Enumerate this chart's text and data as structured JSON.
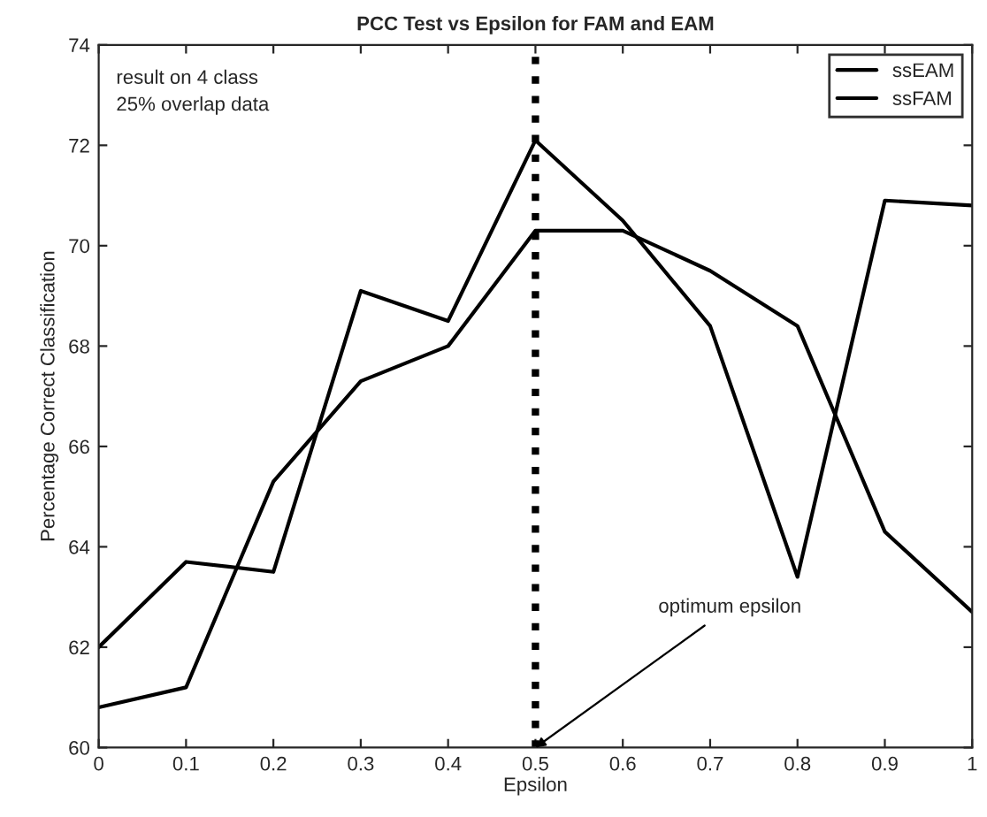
{
  "chart_data": {
    "type": "line",
    "title": "PCC Test vs Epsilon for FAM and EAM",
    "xlabel": "Epsilon",
    "ylabel": "Percentage Correct Classification",
    "x": [
      0,
      0.1,
      0.2,
      0.3,
      0.4,
      0.5,
      0.6,
      0.7,
      0.8,
      0.9,
      1
    ],
    "series": [
      {
        "name": "ssEAM",
        "color": "#000000",
        "values": [
          62.0,
          63.7,
          63.5,
          69.1,
          68.5,
          72.1,
          70.5,
          68.4,
          63.4,
          70.9,
          70.8
        ]
      },
      {
        "name": "ssFAM",
        "color": "#000000",
        "values": [
          60.8,
          61.2,
          65.3,
          67.3,
          68.0,
          70.3,
          70.3,
          69.5,
          68.4,
          64.3,
          62.7
        ]
      }
    ],
    "xlim": [
      0,
      1
    ],
    "xticks": [
      0,
      0.1,
      0.2,
      0.3,
      0.4,
      0.5,
      0.6,
      0.7,
      0.8,
      0.9,
      1
    ],
    "ylim": [
      60,
      74
    ],
    "yticks": [
      60,
      62,
      64,
      66,
      68,
      70,
      72,
      74
    ],
    "ref_lines": [
      {
        "axis": "x",
        "value": 0.5,
        "color": "#000000",
        "line_style": "dotted"
      }
    ],
    "annotations": [
      "result on 4 class\n25% overlap data",
      {
        "text": "optimum epsilon",
        "x": 0.5,
        "y": 60
      }
    ],
    "grid": false,
    "legend": "top right",
    "marker": "none",
    "line_style": "solid"
  }
}
